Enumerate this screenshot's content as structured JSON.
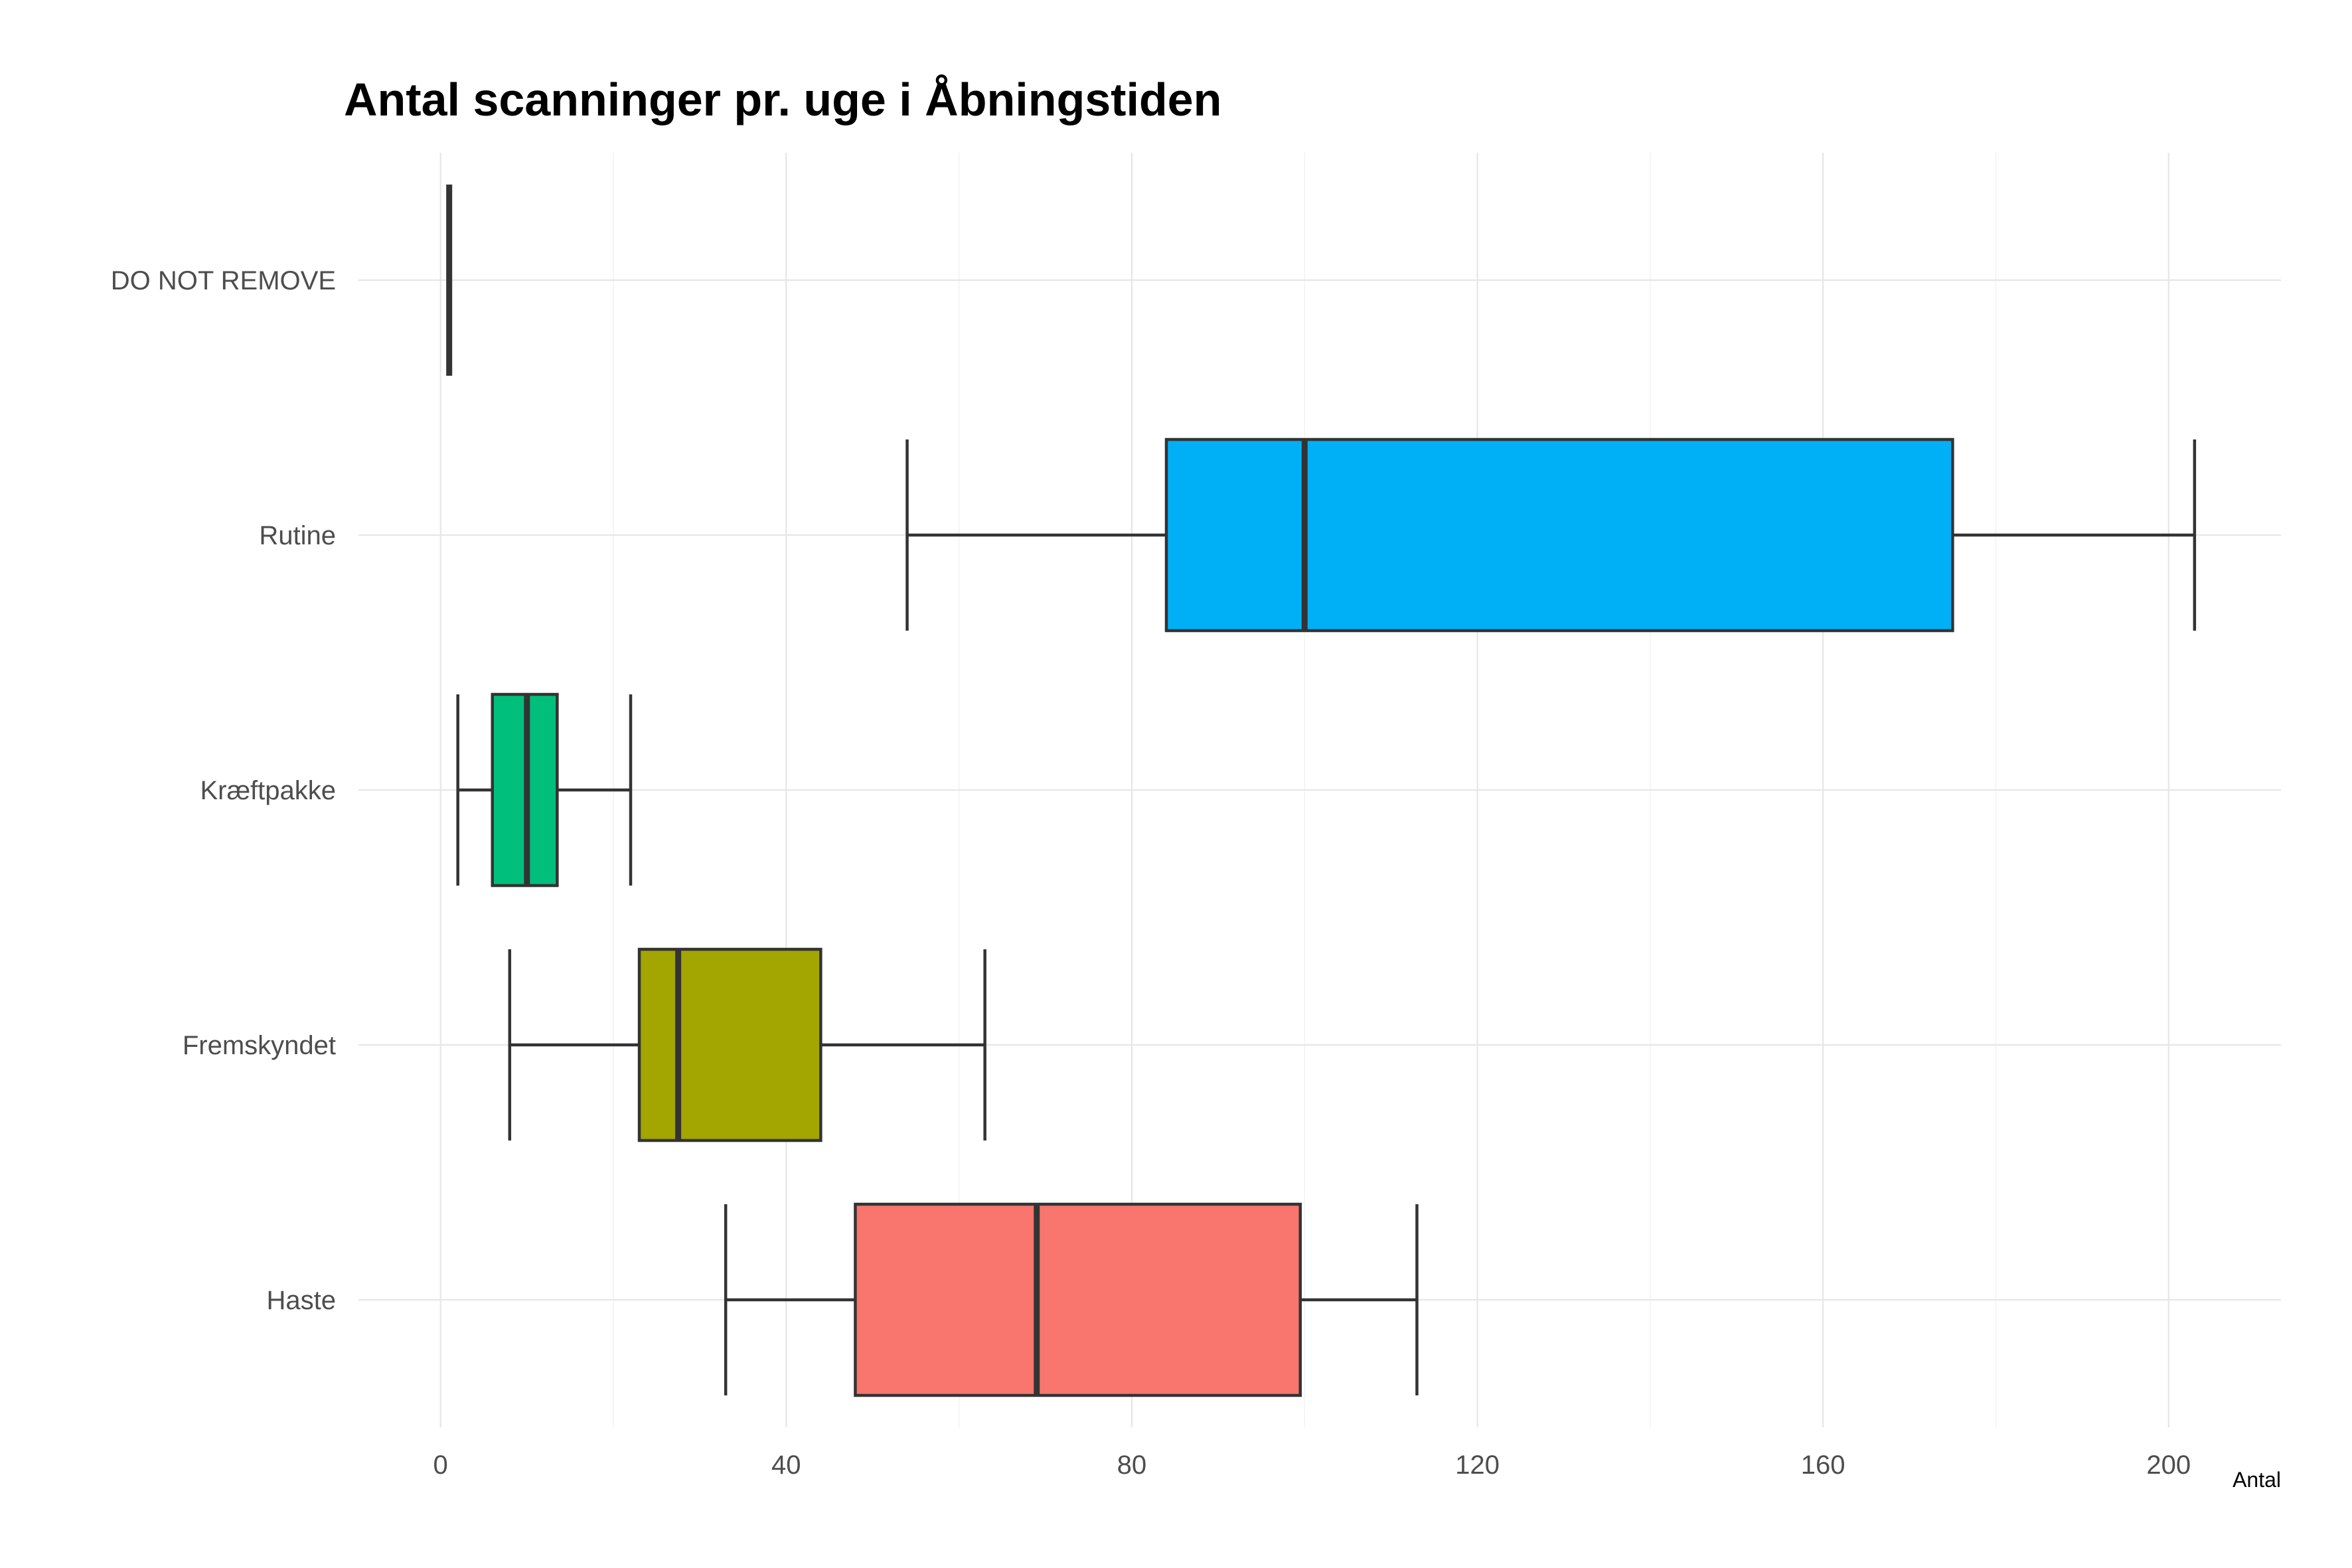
{
  "chart_data": {
    "type": "boxplot",
    "orientation": "horizontal",
    "title": "Antal scanninger pr. uge i Åbningstiden",
    "xlabel": "Antal",
    "ylabel": "",
    "xlim": [
      -9.5,
      213
    ],
    "x_ticks": [
      0,
      40,
      80,
      120,
      160,
      200
    ],
    "x_tick_labels": [
      "0",
      "40",
      "80",
      "120",
      "160",
      "200"
    ],
    "grid": true,
    "legend": "none",
    "categories": [
      "DO NOT REMOVE",
      "Rutine",
      "Kræftpakke",
      "Fremskyndet",
      "Haste"
    ],
    "boxes": [
      {
        "category": "DO NOT REMOVE",
        "min": 1,
        "q1": 1,
        "median": 1,
        "q3": 1,
        "max": 1,
        "color": "#7f7f7f"
      },
      {
        "category": "Rutine",
        "min": 54,
        "q1": 84,
        "median": 100,
        "q3": 175,
        "max": 203,
        "color": "#00b0f6"
      },
      {
        "category": "Kræftpakke",
        "min": 2,
        "q1": 6,
        "median": 10,
        "q3": 13.5,
        "max": 22,
        "color": "#00bf7d"
      },
      {
        "category": "Fremskyndet",
        "min": 8,
        "q1": 23,
        "median": 27.5,
        "q3": 44,
        "max": 63,
        "color": "#a3a500"
      },
      {
        "category": "Haste",
        "min": 33,
        "q1": 48,
        "median": 69,
        "q3": 99.5,
        "max": 113,
        "color": "#f8766d"
      }
    ]
  }
}
